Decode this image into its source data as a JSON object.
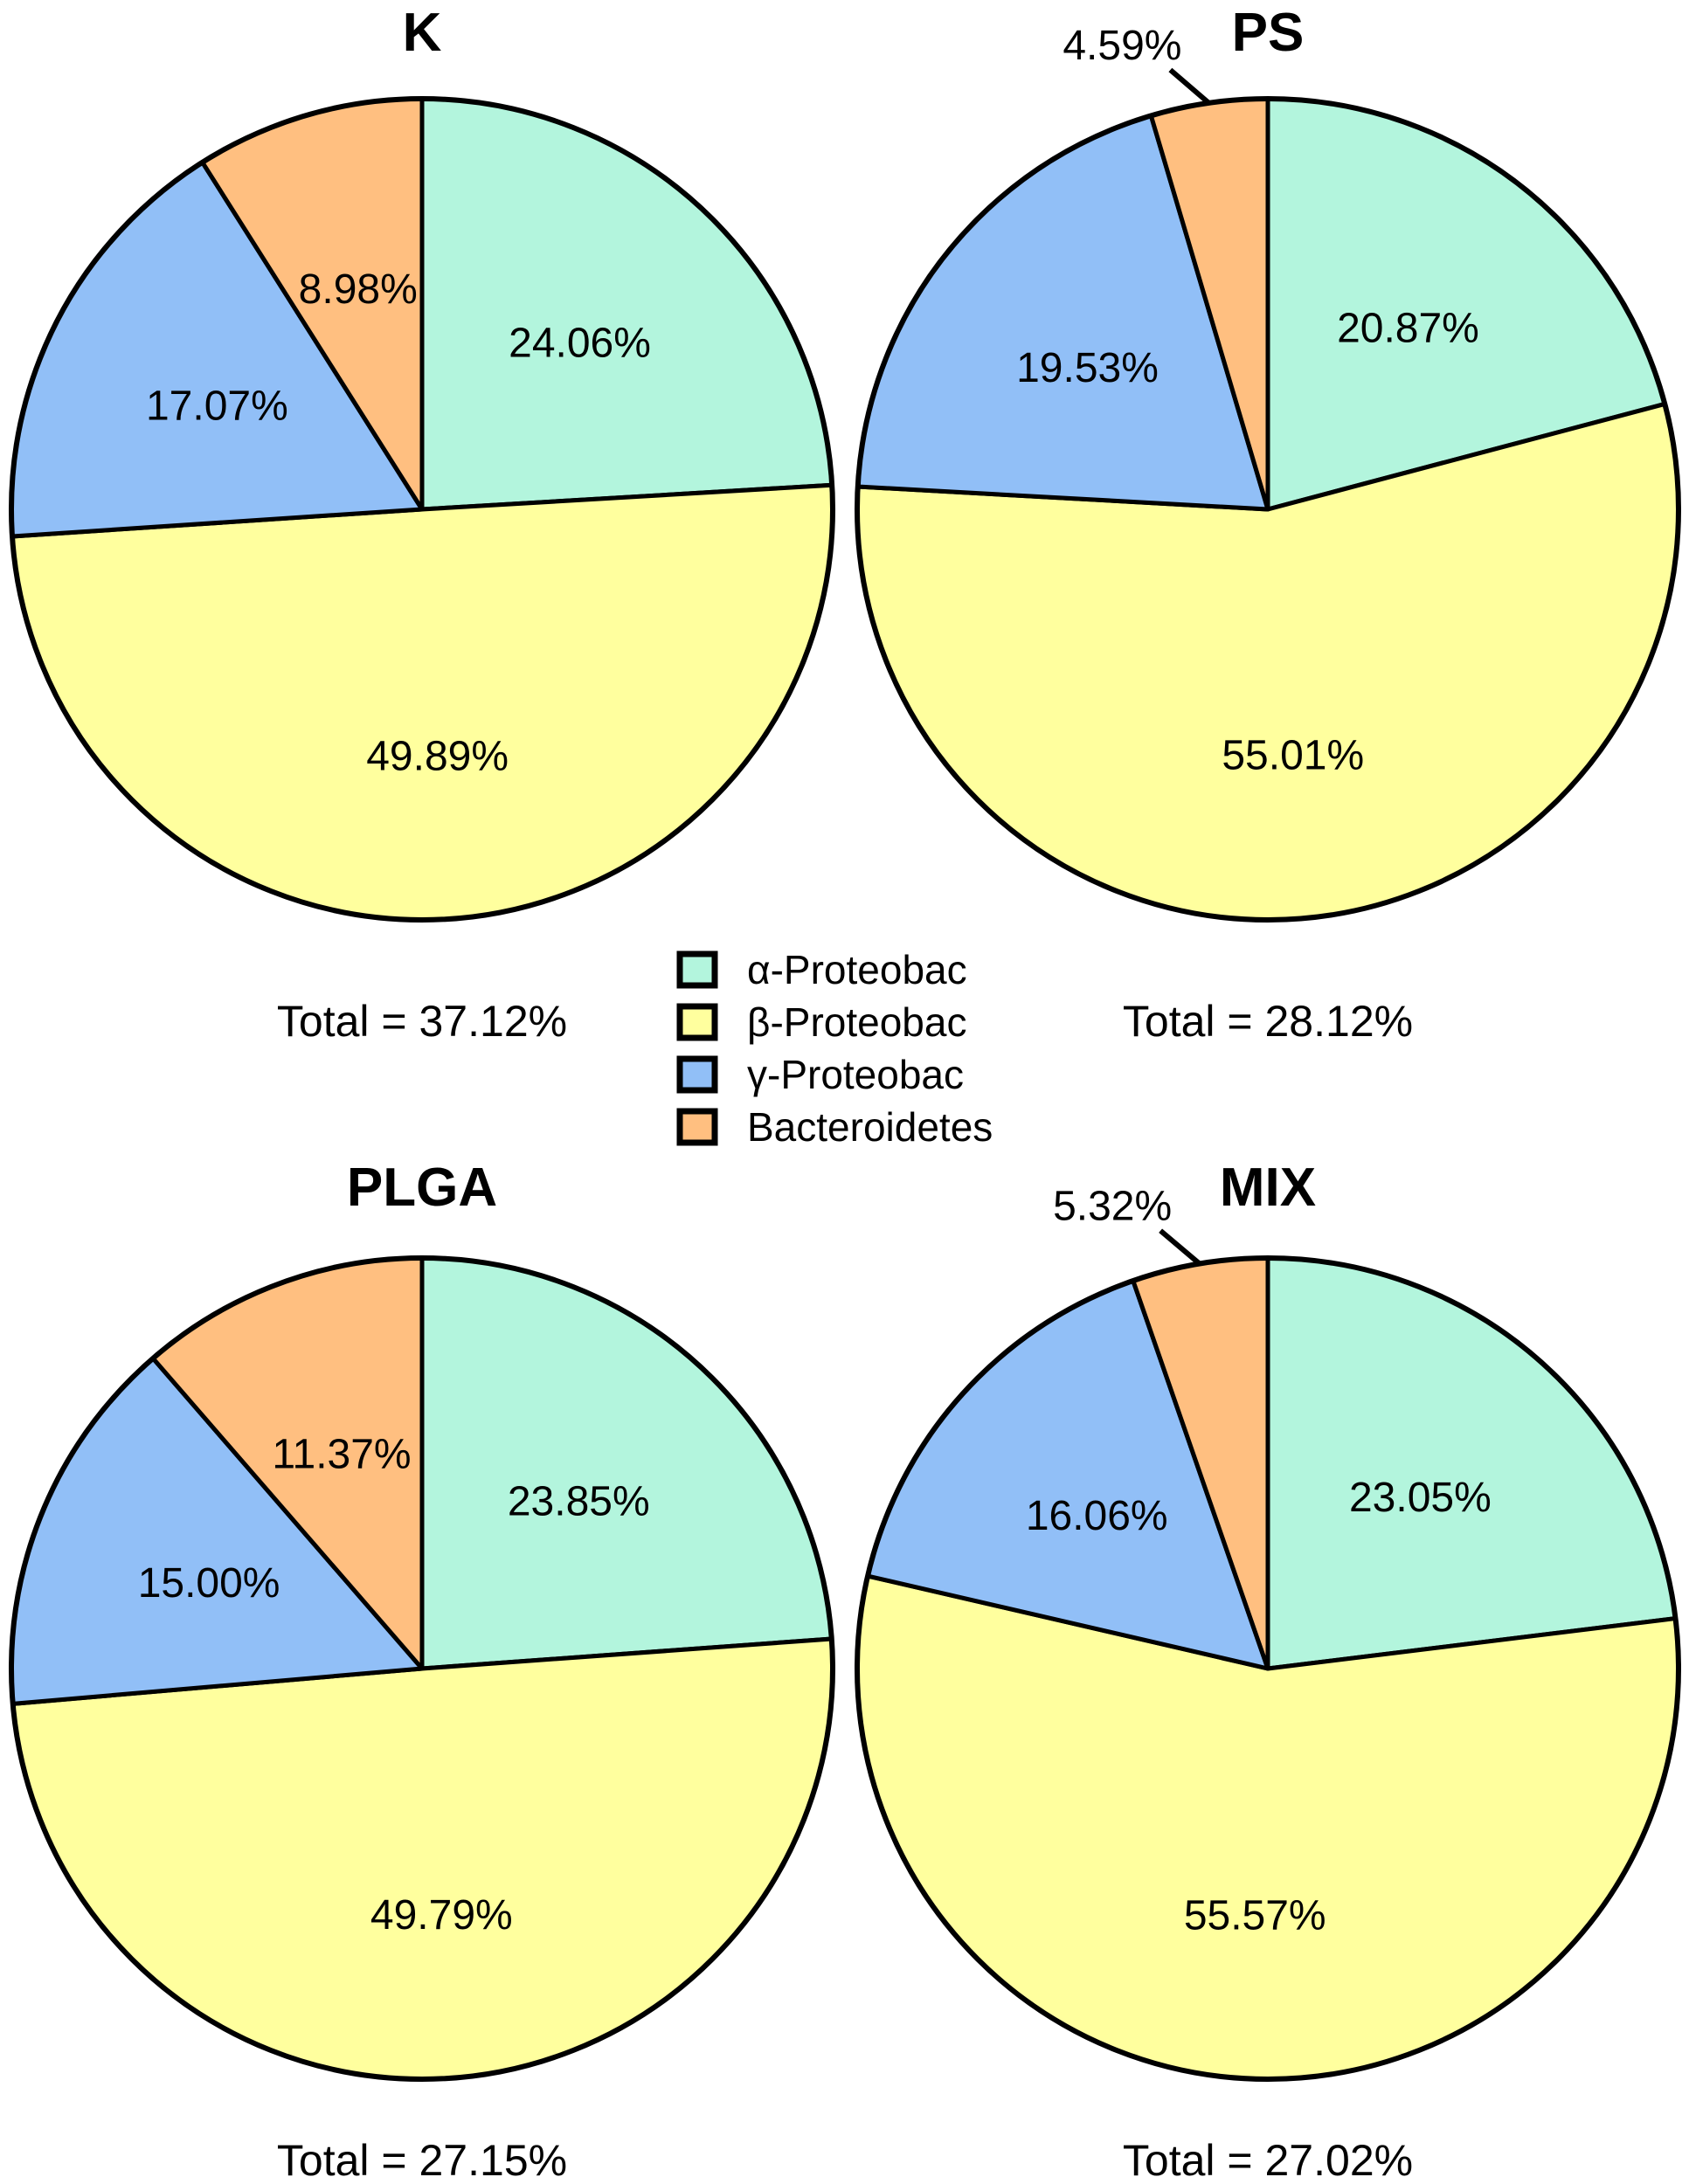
{
  "chart_data": [
    {
      "type": "pie",
      "title": "K",
      "total_label": "Total = 37.12%",
      "slices": [
        {
          "category": "α-Proteobac",
          "value": 24.06,
          "label": "24.06%"
        },
        {
          "category": "β-Proteobac",
          "value": 49.89,
          "label": "49.89%"
        },
        {
          "category": "γ-Proteobac",
          "value": 17.07,
          "label": "17.07%"
        },
        {
          "category": "Bacteroidetes",
          "value": 8.98,
          "label": "8.98%"
        }
      ]
    },
    {
      "type": "pie",
      "title": "PS",
      "total_label": "Total = 28.12%",
      "slices": [
        {
          "category": "α-Proteobac",
          "value": 20.87,
          "label": "20.87%"
        },
        {
          "category": "β-Proteobac",
          "value": 55.01,
          "label": "55.01%"
        },
        {
          "category": "γ-Proteobac",
          "value": 19.53,
          "label": "19.53%"
        },
        {
          "category": "Bacteroidetes",
          "value": 4.59,
          "label": "4.59%"
        }
      ]
    },
    {
      "type": "pie",
      "title": "PLGA",
      "total_label": "Total = 27.15%",
      "slices": [
        {
          "category": "α-Proteobac",
          "value": 23.85,
          "label": "23.85%"
        },
        {
          "category": "β-Proteobac",
          "value": 49.79,
          "label": "49.79%"
        },
        {
          "category": "γ-Proteobac",
          "value": 15.0,
          "label": "15.00%"
        },
        {
          "category": "Bacteroidetes",
          "value": 11.37,
          "label": "11.37%"
        }
      ]
    },
    {
      "type": "pie",
      "title": "MIX",
      "total_label": "Total = 27.02%",
      "slices": [
        {
          "category": "α-Proteobac",
          "value": 23.05,
          "label": "23.05%"
        },
        {
          "category": "β-Proteobac",
          "value": 55.57,
          "label": "55.57%"
        },
        {
          "category": "γ-Proteobac",
          "value": 16.06,
          "label": "16.06%"
        },
        {
          "category": "Bacteroidetes",
          "value": 5.32,
          "label": "5.32%"
        }
      ]
    }
  ],
  "legend": [
    {
      "label": "α-Proteobac",
      "color": "#b3f5dd"
    },
    {
      "label": "β-Proteobac",
      "color": "#ffff9e"
    },
    {
      "label": "γ-Proteobac",
      "color": "#91bff7"
    },
    {
      "label": "Bacteroidetes",
      "color": "#ffbf80"
    }
  ]
}
